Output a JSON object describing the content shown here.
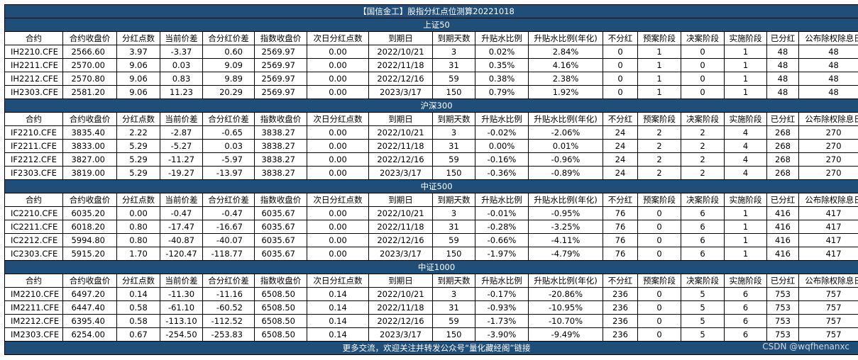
{
  "title": "【国信金工】股指分红点位测算20221018",
  "columns": [
    "合约",
    "合约收盘价",
    "分红点数",
    "当前价差",
    "合分红价差",
    "指数收盘价",
    "次日分红点数",
    "到期日",
    "到期天数",
    "升贴水比例",
    "升贴水比例(年化)",
    "不分红",
    "预案阶段",
    "决案阶段",
    "实施阶段",
    "已分红",
    "公布除权除息日"
  ],
  "sections": [
    {
      "name": "上证50",
      "rows": [
        [
          "IH2210.CFE",
          "2566.60",
          "3.97",
          "-3.37",
          "0.60",
          "2569.97",
          "0.00",
          "2022/10/21",
          "3",
          "0.02%",
          "2.84%",
          "0",
          "1",
          "0",
          "1",
          "48",
          "48"
        ],
        [
          "IH2211.CFE",
          "2570.00",
          "9.06",
          "0.03",
          "9.09",
          "2569.97",
          "0.00",
          "2022/11/18",
          "31",
          "0.35%",
          "4.16%",
          "0",
          "1",
          "0",
          "1",
          "48",
          "48"
        ],
        [
          "IH2212.CFE",
          "2570.80",
          "9.06",
          "0.83",
          "9.89",
          "2569.97",
          "0.00",
          "2022/12/16",
          "59",
          "0.38%",
          "2.38%",
          "0",
          "1",
          "0",
          "1",
          "48",
          "48"
        ],
        [
          "IH2303.CFE",
          "2581.20",
          "9.06",
          "11.23",
          "20.29",
          "2569.97",
          "0.00",
          "2023/3/17",
          "150",
          "0.79%",
          "1.92%",
          "0",
          "1",
          "0",
          "1",
          "48",
          "48"
        ]
      ]
    },
    {
      "name": "沪深300",
      "rows": [
        [
          "IF2210.CFE",
          "3835.40",
          "2.22",
          "-2.87",
          "-0.65",
          "3838.27",
          "0.00",
          "2022/10/21",
          "3",
          "-0.02%",
          "-2.06%",
          "24",
          "2",
          "2",
          "4",
          "268",
          "270"
        ],
        [
          "IF2211.CFE",
          "3833.00",
          "5.29",
          "-5.27",
          "0.03",
          "3838.27",
          "0.00",
          "2022/11/18",
          "31",
          "0.00%",
          "0.01%",
          "24",
          "2",
          "2",
          "4",
          "268",
          "270"
        ],
        [
          "IF2212.CFE",
          "3827.00",
          "5.29",
          "-11.27",
          "-5.97",
          "3838.27",
          "0.00",
          "2022/12/16",
          "59",
          "-0.16%",
          "-0.96%",
          "24",
          "2",
          "2",
          "4",
          "268",
          "270"
        ],
        [
          "IF2303.CFE",
          "3819.00",
          "5.29",
          "-19.27",
          "-13.97",
          "3838.27",
          "0.00",
          "2023/3/17",
          "150",
          "-0.36%",
          "-0.89%",
          "24",
          "2",
          "2",
          "4",
          "268",
          "270"
        ]
      ]
    },
    {
      "name": "中证500",
      "rows": [
        [
          "IC2210.CFE",
          "6035.20",
          "0.00",
          "-0.47",
          "-0.47",
          "6035.67",
          "0.00",
          "2022/10/21",
          "3",
          "-0.01%",
          "-0.95%",
          "76",
          "0",
          "6",
          "1",
          "416",
          "417"
        ],
        [
          "IC2211.CFE",
          "6018.20",
          "0.80",
          "-17.47",
          "-16.67",
          "6035.67",
          "0.00",
          "2022/11/18",
          "31",
          "-0.28%",
          "-3.25%",
          "76",
          "0",
          "6",
          "1",
          "416",
          "417"
        ],
        [
          "IC2212.CFE",
          "5994.80",
          "0.80",
          "-40.87",
          "-40.07",
          "6035.67",
          "0.00",
          "2022/12/16",
          "59",
          "-0.66%",
          "-4.11%",
          "76",
          "0",
          "6",
          "1",
          "416",
          "417"
        ],
        [
          "IC2303.CFE",
          "5915.20",
          "1.70",
          "-120.47",
          "-118.77",
          "6035.67",
          "0.00",
          "2023/3/17",
          "150",
          "-1.97%",
          "-4.79%",
          "76",
          "0",
          "6",
          "1",
          "416",
          "417"
        ]
      ]
    },
    {
      "name": "中证1000",
      "rows": [
        [
          "IM2210.CFE",
          "6497.20",
          "0.14",
          "-11.30",
          "-11.16",
          "6508.50",
          "0.14",
          "2022/10/21",
          "3",
          "-0.17%",
          "-20.86%",
          "236",
          "0",
          "5",
          "6",
          "753",
          "757"
        ],
        [
          "IM2211.CFE",
          "6447.40",
          "0.58",
          "-61.10",
          "-60.52",
          "6508.50",
          "0.14",
          "2022/11/18",
          "31",
          "-0.93%",
          "-10.95%",
          "236",
          "0",
          "5",
          "6",
          "753",
          "757"
        ],
        [
          "IM2212.CFE",
          "6395.40",
          "0.58",
          "-113.10",
          "-112.52",
          "6508.50",
          "0.14",
          "2022/12/16",
          "59",
          "-1.73%",
          "-10.70%",
          "236",
          "0",
          "5",
          "6",
          "753",
          "757"
        ],
        [
          "IM2303.CFE",
          "6254.00",
          "0.67",
          "-254.50",
          "-253.83",
          "6508.50",
          "0.14",
          "2023/3/17",
          "150",
          "-3.90%",
          "-9.49%",
          "236",
          "0",
          "5",
          "6",
          "753",
          "757"
        ]
      ]
    }
  ],
  "footer": "更多交流，欢迎关注并转发公众号“量化藏经阁”链接",
  "watermark": "CSDN @wqfhenanxc",
  "colors": {
    "header_blue": "#1f4e79",
    "text_white": "#ffffff"
  }
}
